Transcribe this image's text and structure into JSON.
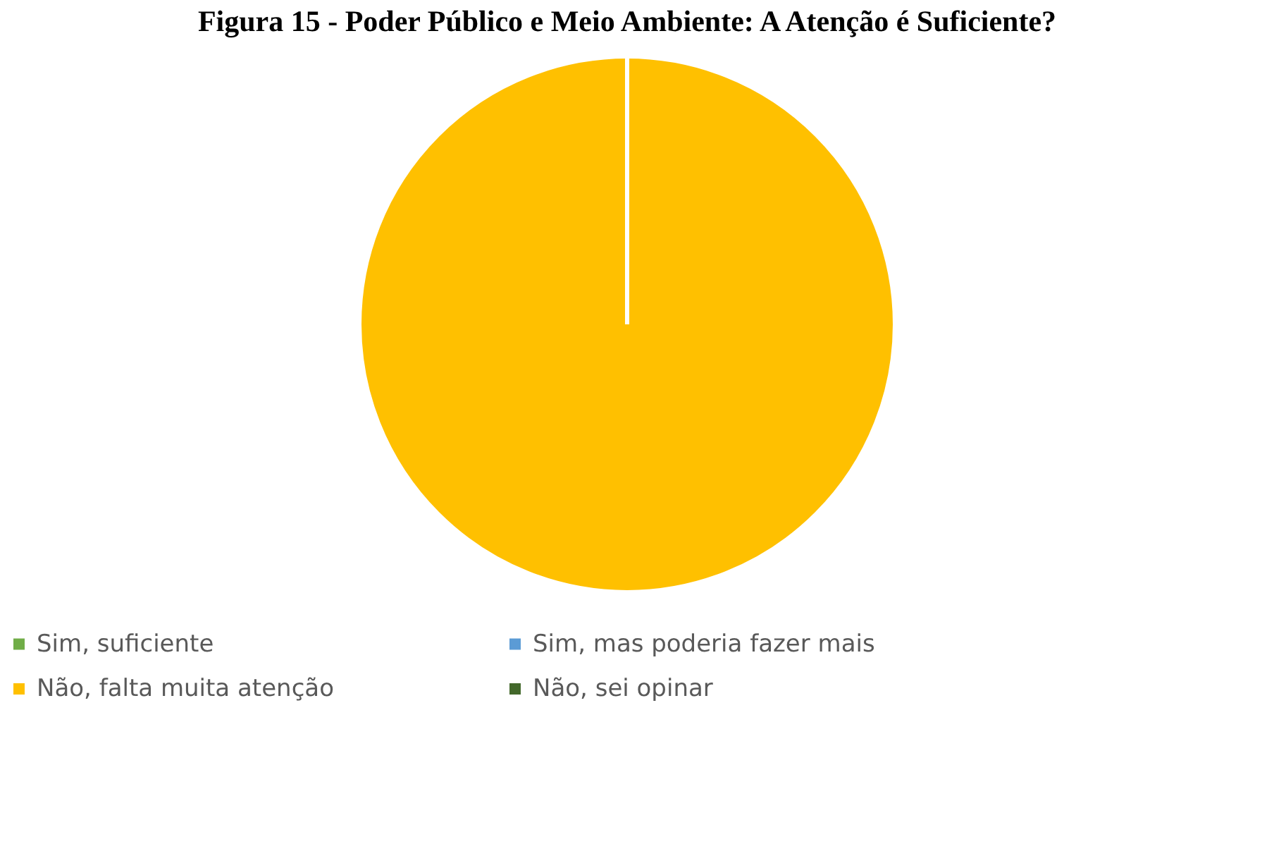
{
  "chart_data": {
    "type": "pie",
    "title": "Figura 15 - Poder Público e Meio Ambiente: A Atenção é Suficiente?",
    "categories": [
      "Sim, suficiente",
      "Sim, mas poderia fazer mais",
      "Não, falta muita atenção",
      "Não, sei opinar"
    ],
    "values": [
      0,
      0,
      100,
      0
    ],
    "colors": [
      "#70ad47",
      "#5b9bd5",
      "#ffc000",
      "#43682b"
    ],
    "legend": "bottom"
  }
}
